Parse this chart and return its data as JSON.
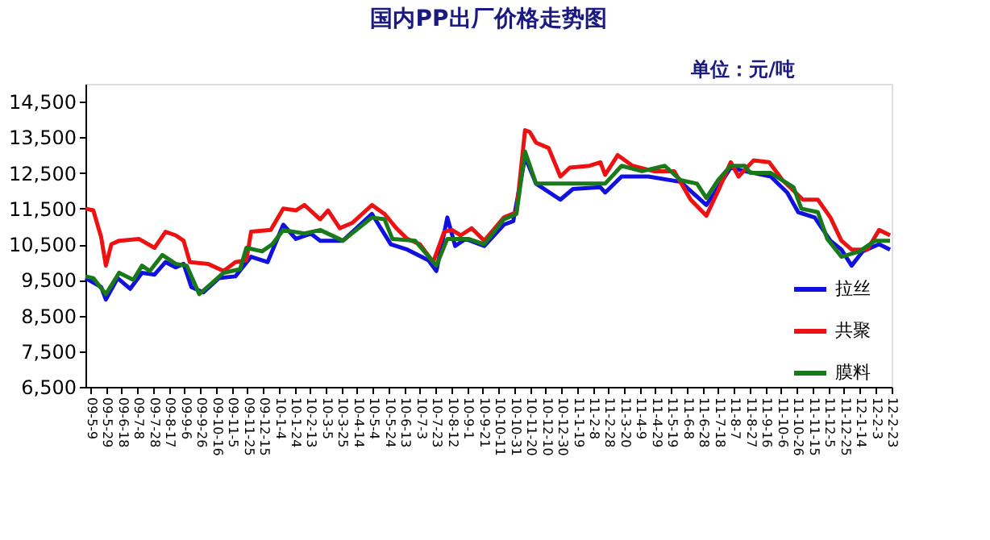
{
  "chart_data": {
    "type": "line",
    "title": "国内PP出厂价格走势图",
    "subtitle": "单位：元/吨",
    "xlim": [
      "2009-05-03",
      "2012-02-24"
    ],
    "ylim": [
      6500,
      15000
    ],
    "yticks": [
      {
        "value": 6500,
        "label": "6,500"
      },
      {
        "value": 7500,
        "label": "7,500"
      },
      {
        "value": 8500,
        "label": "8,500"
      },
      {
        "value": 9500,
        "label": "9,500"
      },
      {
        "value": 10500,
        "label": "10,500"
      },
      {
        "value": 11500,
        "label": "11,500"
      },
      {
        "value": 12500,
        "label": "12,500"
      },
      {
        "value": 13500,
        "label": "13,500"
      },
      {
        "value": 14500,
        "label": "14,500"
      }
    ],
    "xticks": [
      {
        "value": "2009-05-09",
        "label": "09-5-9"
      },
      {
        "value": "2009-05-29",
        "label": "09-5-29"
      },
      {
        "value": "2009-06-18",
        "label": "09-6-18"
      },
      {
        "value": "2009-07-08",
        "label": "09-7-8"
      },
      {
        "value": "2009-07-28",
        "label": "09-7-28"
      },
      {
        "value": "2009-08-17",
        "label": "09-8-17"
      },
      {
        "value": "2009-09-06",
        "label": "09-9-6"
      },
      {
        "value": "2009-09-26",
        "label": "09-9-26"
      },
      {
        "value": "2009-10-16",
        "label": "09-10-16"
      },
      {
        "value": "2009-11-05",
        "label": "09-11-5"
      },
      {
        "value": "2009-11-25",
        "label": "09-11-25"
      },
      {
        "value": "2009-12-15",
        "label": "09-12-15"
      },
      {
        "value": "2010-01-04",
        "label": "10-1-4"
      },
      {
        "value": "2010-01-24",
        "label": "10-1-24"
      },
      {
        "value": "2010-02-13",
        "label": "10-2-13"
      },
      {
        "value": "2010-03-05",
        "label": "10-3-5"
      },
      {
        "value": "2010-03-25",
        "label": "10-3-25"
      },
      {
        "value": "2010-04-14",
        "label": "10-4-14"
      },
      {
        "value": "2010-05-04",
        "label": "10-5-4"
      },
      {
        "value": "2010-05-24",
        "label": "10-5-24"
      },
      {
        "value": "2010-06-13",
        "label": "10-6-13"
      },
      {
        "value": "2010-07-03",
        "label": "10-7-3"
      },
      {
        "value": "2010-07-23",
        "label": "10-7-23"
      },
      {
        "value": "2010-08-12",
        "label": "10-8-12"
      },
      {
        "value": "2010-09-01",
        "label": "10-9-1"
      },
      {
        "value": "2010-09-21",
        "label": "10-9-21"
      },
      {
        "value": "2010-10-11",
        "label": "10-10-11"
      },
      {
        "value": "2010-10-31",
        "label": "10-10-31"
      },
      {
        "value": "2010-11-20",
        "label": "10-11-20"
      },
      {
        "value": "2010-12-10",
        "label": "10-12-10"
      },
      {
        "value": "2010-12-30",
        "label": "10-12-30"
      },
      {
        "value": "2011-01-19",
        "label": "11-1-19"
      },
      {
        "value": "2011-02-08",
        "label": "11-2-8"
      },
      {
        "value": "2011-02-28",
        "label": "11-2-28"
      },
      {
        "value": "2011-03-20",
        "label": "11-3-20"
      },
      {
        "value": "2011-04-09",
        "label": "11-4-9"
      },
      {
        "value": "2011-04-29",
        "label": "11-4-29"
      },
      {
        "value": "2011-05-19",
        "label": "11-5-19"
      },
      {
        "value": "2011-06-08",
        "label": "11-6-8"
      },
      {
        "value": "2011-06-28",
        "label": "11-6-28"
      },
      {
        "value": "2011-07-18",
        "label": "11-7-18"
      },
      {
        "value": "2011-08-07",
        "label": "11-8-7"
      },
      {
        "value": "2011-08-27",
        "label": "11-8-27"
      },
      {
        "value": "2011-09-16",
        "label": "11-9-16"
      },
      {
        "value": "2011-10-06",
        "label": "11-10-6"
      },
      {
        "value": "2011-10-26",
        "label": "11-10-26"
      },
      {
        "value": "2011-11-15",
        "label": "11-11-15"
      },
      {
        "value": "2011-12-05",
        "label": "11-12-5"
      },
      {
        "value": "2011-12-25",
        "label": "11-12-25"
      },
      {
        "value": "2012-01-14",
        "label": "12-1-14"
      },
      {
        "value": "2012-02-03",
        "label": "12-2-3"
      },
      {
        "value": "2012-02-23",
        "label": "12-2-23"
      }
    ],
    "grid": false,
    "legend": "bottom right",
    "marker": "none",
    "line_style": "solid",
    "series": [
      {
        "name": "拉丝",
        "color": "#1010e0",
        "x": [
          "2009-05-03",
          "2009-05-23",
          "2009-05-29",
          "2009-06-13",
          "2009-06-29",
          "2009-07-14",
          "2009-07-30",
          "2009-08-13",
          "2009-08-26",
          "2009-09-05",
          "2009-09-15",
          "2009-09-30",
          "2009-10-20",
          "2009-11-10",
          "2009-11-30",
          "2009-12-21",
          "2010-01-10",
          "2010-01-26",
          "2010-02-14",
          "2010-02-26",
          "2010-03-27",
          "2010-05-03",
          "2010-05-27",
          "2010-06-17",
          "2010-07-14",
          "2010-07-24",
          "2010-08-07",
          "2010-08-17",
          "2010-08-30",
          "2010-09-23",
          "2010-10-18",
          "2010-10-30",
          "2010-11-14",
          "2010-11-28",
          "2010-12-29",
          "2011-01-14",
          "2011-02-18",
          "2011-02-24",
          "2011-03-17",
          "2011-04-20",
          "2011-05-31",
          "2011-07-03",
          "2011-07-18",
          "2011-08-03",
          "2011-08-21",
          "2011-09-23",
          "2011-10-14",
          "2011-10-28",
          "2011-11-18",
          "2011-12-08",
          "2011-12-22",
          "2012-01-04",
          "2012-01-18",
          "2012-02-08",
          "2012-02-22"
        ],
        "values": [
          9550,
          9300,
          8950,
          9550,
          9250,
          9700,
          9650,
          10000,
          9850,
          9950,
          9300,
          9150,
          9550,
          9600,
          10150,
          10000,
          11050,
          10650,
          10800,
          10600,
          10600,
          11350,
          10500,
          10350,
          10050,
          9750,
          11250,
          10450,
          10650,
          10450,
          11050,
          11150,
          12950,
          12200,
          11750,
          12050,
          12100,
          11950,
          12400,
          12400,
          12250,
          11600,
          12100,
          12650,
          12550,
          12400,
          11950,
          11400,
          11250,
          10600,
          10350,
          9900,
          10300,
          10500,
          10350
        ]
      },
      {
        "name": "共聚",
        "color": "#ee1111",
        "x": [
          "2009-05-03",
          "2009-05-13",
          "2009-05-23",
          "2009-05-29",
          "2009-06-05",
          "2009-06-15",
          "2009-07-10",
          "2009-07-30",
          "2009-08-13",
          "2009-08-26",
          "2009-09-05",
          "2009-09-13",
          "2009-10-06",
          "2009-10-26",
          "2009-11-10",
          "2009-11-24",
          "2009-11-30",
          "2009-12-25",
          "2010-01-10",
          "2010-01-26",
          "2010-02-06",
          "2010-02-26",
          "2010-03-08",
          "2010-03-23",
          "2010-04-08",
          "2010-05-03",
          "2010-05-19",
          "2010-06-03",
          "2010-06-17",
          "2010-07-03",
          "2010-07-20",
          "2010-08-03",
          "2010-08-13",
          "2010-08-24",
          "2010-09-07",
          "2010-09-23",
          "2010-10-18",
          "2010-11-03",
          "2010-11-14",
          "2010-11-20",
          "2010-11-28",
          "2010-12-14",
          "2010-12-29",
          "2011-01-10",
          "2011-02-04",
          "2011-02-18",
          "2011-02-24",
          "2011-03-12",
          "2011-03-31",
          "2011-04-27",
          "2011-05-23",
          "2011-06-13",
          "2011-07-03",
          "2011-07-18",
          "2011-08-03",
          "2011-08-13",
          "2011-09-01",
          "2011-09-21",
          "2011-10-08",
          "2011-11-03",
          "2011-11-22",
          "2011-12-08",
          "2011-12-22",
          "2012-01-04",
          "2012-01-24",
          "2012-02-08",
          "2012-02-22"
        ],
        "values": [
          11500,
          11450,
          10700,
          9900,
          10500,
          10600,
          10650,
          10400,
          10850,
          10750,
          10600,
          10000,
          9950,
          9750,
          10000,
          10050,
          10850,
          10900,
          11500,
          11450,
          11600,
          11200,
          11450,
          10950,
          11100,
          11600,
          11350,
          10950,
          10650,
          10500,
          10000,
          10850,
          10900,
          10750,
          10950,
          10600,
          11250,
          11400,
          13700,
          13650,
          13350,
          13200,
          12400,
          12650,
          12700,
          12800,
          12450,
          13000,
          12700,
          12550,
          12550,
          11750,
          11300,
          12000,
          12800,
          12400,
          12850,
          12800,
          12300,
          11750,
          11750,
          11250,
          10600,
          10350,
          10350,
          10900,
          10750
        ]
      },
      {
        "name": "膜料",
        "color": "#1a7a1a",
        "x": [
          "2009-05-03",
          "2009-05-13",
          "2009-05-29",
          "2009-06-15",
          "2009-07-03",
          "2009-07-14",
          "2009-07-24",
          "2009-08-09",
          "2009-08-26",
          "2009-09-09",
          "2009-09-25",
          "2009-10-26",
          "2009-11-16",
          "2009-11-24",
          "2009-12-14",
          "2009-12-27",
          "2010-01-10",
          "2010-02-06",
          "2010-02-26",
          "2010-03-27",
          "2010-05-03",
          "2010-05-19",
          "2010-05-29",
          "2010-06-27",
          "2010-07-24",
          "2010-08-07",
          "2010-09-03",
          "2010-09-23",
          "2010-10-18",
          "2010-11-03",
          "2010-11-14",
          "2010-11-28",
          "2011-02-24",
          "2011-03-17",
          "2011-04-12",
          "2011-05-11",
          "2011-05-31",
          "2011-06-21",
          "2011-07-03",
          "2011-07-18",
          "2011-08-03",
          "2011-08-21",
          "2011-08-28",
          "2011-09-23",
          "2011-10-22",
          "2011-11-01",
          "2011-11-22",
          "2011-12-04",
          "2011-12-22",
          "2012-01-14",
          "2012-02-03",
          "2012-02-22"
        ],
        "values": [
          9600,
          9550,
          9100,
          9700,
          9500,
          9900,
          9750,
          10200,
          9950,
          9900,
          9100,
          9700,
          9800,
          10400,
          10300,
          10500,
          10900,
          10800,
          10900,
          10600,
          11250,
          11200,
          10650,
          10600,
          9900,
          10650,
          10650,
          10500,
          11200,
          11350,
          13100,
          12200,
          12200,
          12700,
          12550,
          12700,
          12300,
          12200,
          11800,
          12300,
          12700,
          12700,
          12500,
          12500,
          12100,
          11500,
          11400,
          10650,
          10150,
          10300,
          10600,
          10600
        ]
      }
    ]
  }
}
